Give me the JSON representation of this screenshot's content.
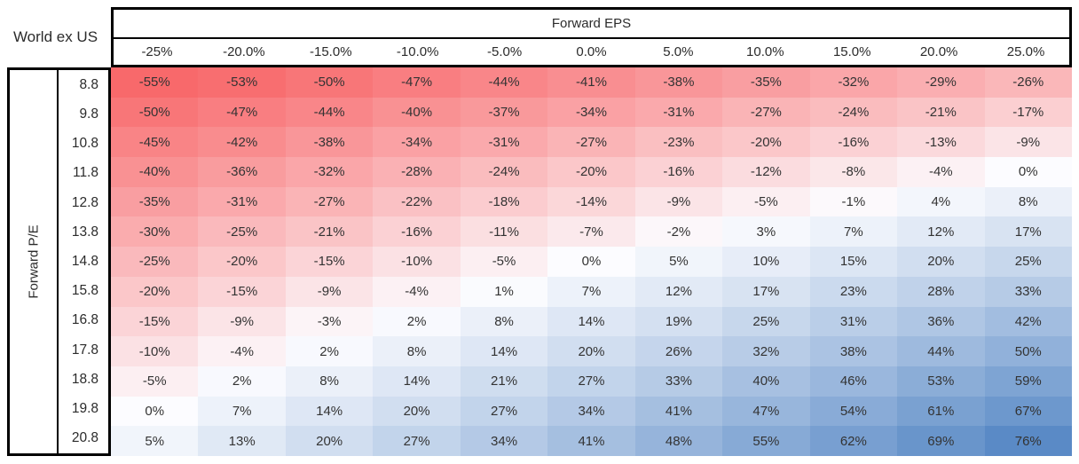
{
  "table": {
    "corner_label": "World ex US",
    "column_group_label": "Forward EPS",
    "row_group_label": "Forward P/E"
  },
  "colors": {
    "negative_max": "#F8696B",
    "midpoint": "#FCFCFF",
    "positive_max": "#5A8AC6",
    "border": "#000000",
    "cell_text": "#333333"
  },
  "chart_data": {
    "type": "heatmap",
    "title": "World ex US",
    "xlabel": "Forward EPS",
    "ylabel": "Forward P/E",
    "columns": [
      "-25%",
      "-20.0%",
      "-15.0%",
      "-10.0%",
      "-5.0%",
      "0.0%",
      "5.0%",
      "10.0%",
      "15.0%",
      "20.0%",
      "25.0%"
    ],
    "rows": [
      "8.8",
      "9.8",
      "10.8",
      "11.8",
      "12.8",
      "13.8",
      "14.8",
      "15.8",
      "16.8",
      "17.8",
      "18.8",
      "19.8",
      "20.8"
    ],
    "values_pct": [
      [
        -55,
        -53,
        -50,
        -47,
        -44,
        -41,
        -38,
        -35,
        -32,
        -29,
        -26
      ],
      [
        -50,
        -47,
        -44,
        -40,
        -37,
        -34,
        -31,
        -27,
        -24,
        -21,
        -17
      ],
      [
        -45,
        -42,
        -38,
        -34,
        -31,
        -27,
        -23,
        -20,
        -16,
        -13,
        -9
      ],
      [
        -40,
        -36,
        -32,
        -28,
        -24,
        -20,
        -16,
        -12,
        -8,
        -4,
        0
      ],
      [
        -35,
        -31,
        -27,
        -22,
        -18,
        -14,
        -9,
        -5,
        -1,
        4,
        8
      ],
      [
        -30,
        -25,
        -21,
        -16,
        -11,
        -7,
        -2,
        3,
        7,
        12,
        17
      ],
      [
        -25,
        -20,
        -15,
        -10,
        -5,
        0,
        5,
        10,
        15,
        20,
        25
      ],
      [
        -20,
        -15,
        -9,
        -4,
        1,
        7,
        12,
        17,
        23,
        28,
        33
      ],
      [
        -15,
        -9,
        -3,
        2,
        8,
        14,
        19,
        25,
        31,
        36,
        42
      ],
      [
        -10,
        -4,
        2,
        8,
        14,
        20,
        26,
        32,
        38,
        44,
        50
      ],
      [
        -5,
        2,
        8,
        14,
        21,
        27,
        33,
        40,
        46,
        53,
        59
      ],
      [
        0,
        7,
        14,
        20,
        27,
        34,
        41,
        47,
        54,
        61,
        67
      ],
      [
        5,
        13,
        20,
        27,
        34,
        41,
        48,
        55,
        62,
        69,
        76
      ]
    ],
    "value_suffix": "%",
    "color_scale": {
      "min": -55,
      "mid": 0,
      "max": 76
    },
    "legend": "none",
    "grid": false
  }
}
